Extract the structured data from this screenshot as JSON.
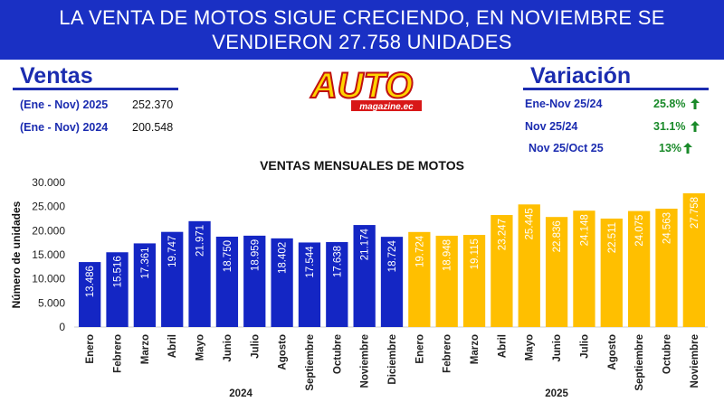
{
  "header": {
    "line1": "LA VENTA DE MOTOS SIGUE CRECIENDO, EN NOVIEMBRE SE",
    "line2": "VENDIERON 27.758 UNIDADES"
  },
  "ventas": {
    "title": "Ventas",
    "rows": [
      {
        "label": "(Ene - Nov) 2025",
        "value": "252.370"
      },
      {
        "label": "(Ene - Nov) 2024",
        "value": "200.548"
      }
    ]
  },
  "logo": {
    "text": "AUTO",
    "subtext": "magazine.ec"
  },
  "variacion": {
    "title": "Variación",
    "rows": [
      {
        "label": "Ene-Nov 25/24",
        "value": "25.8%"
      },
      {
        "label": "Nov 25/24",
        "value": "31.1%"
      },
      {
        "label": "Nov 25/Oct 25",
        "value": "13%"
      }
    ]
  },
  "colors": {
    "banner": "#1a30c4",
    "accent": "#1b2cb0",
    "bar2024": "#1426c4",
    "bar2025": "#ffbf00",
    "positive": "#1a8a2a"
  },
  "chart_data": {
    "type": "bar",
    "title": "VENTAS MENSUALES DE MOTOS",
    "ylabel": "Número de unidades",
    "xlabel": "",
    "ylim": [
      0,
      30000
    ],
    "yticks": [
      0,
      5000,
      10000,
      15000,
      20000,
      25000,
      30000
    ],
    "ytick_labels": [
      "0",
      "5.000",
      "10.000",
      "15.000",
      "20.000",
      "25.000",
      "30.000"
    ],
    "categories": [
      "Enero",
      "Febrero",
      "Marzo",
      "Abril",
      "Mayo",
      "Junio",
      "Julio",
      "Agosto",
      "Septiembre",
      "Octubre",
      "Noviembre",
      "Diciembre",
      "Enero",
      "Febrero",
      "Marzo",
      "Abril",
      "Mayo",
      "Junio",
      "Julio",
      "Agosto",
      "Septiembre",
      "Octubre",
      "Noviembre"
    ],
    "values": [
      13486,
      15516,
      17361,
      19747,
      21971,
      18750,
      18959,
      18402,
      17544,
      17638,
      21174,
      18724,
      19724,
      18948,
      19115,
      23247,
      25445,
      22836,
      24148,
      22511,
      24075,
      24563,
      27758
    ],
    "labels": [
      "13.486",
      "15.516",
      "17.361",
      "19.747",
      "21.971",
      "18.750",
      "18.959",
      "18.402",
      "17.544",
      "17.638",
      "21.174",
      "18.724",
      "19.724",
      "18.948",
      "19.115",
      "23.247",
      "25.445",
      "22.836",
      "24.148",
      "22.511",
      "24.075",
      "24.563",
      "27.758"
    ],
    "groups": [
      {
        "name": "2024",
        "start": 0,
        "count": 12
      },
      {
        "name": "2025",
        "start": 12,
        "count": 11
      }
    ],
    "grid": false,
    "legend": "none"
  }
}
